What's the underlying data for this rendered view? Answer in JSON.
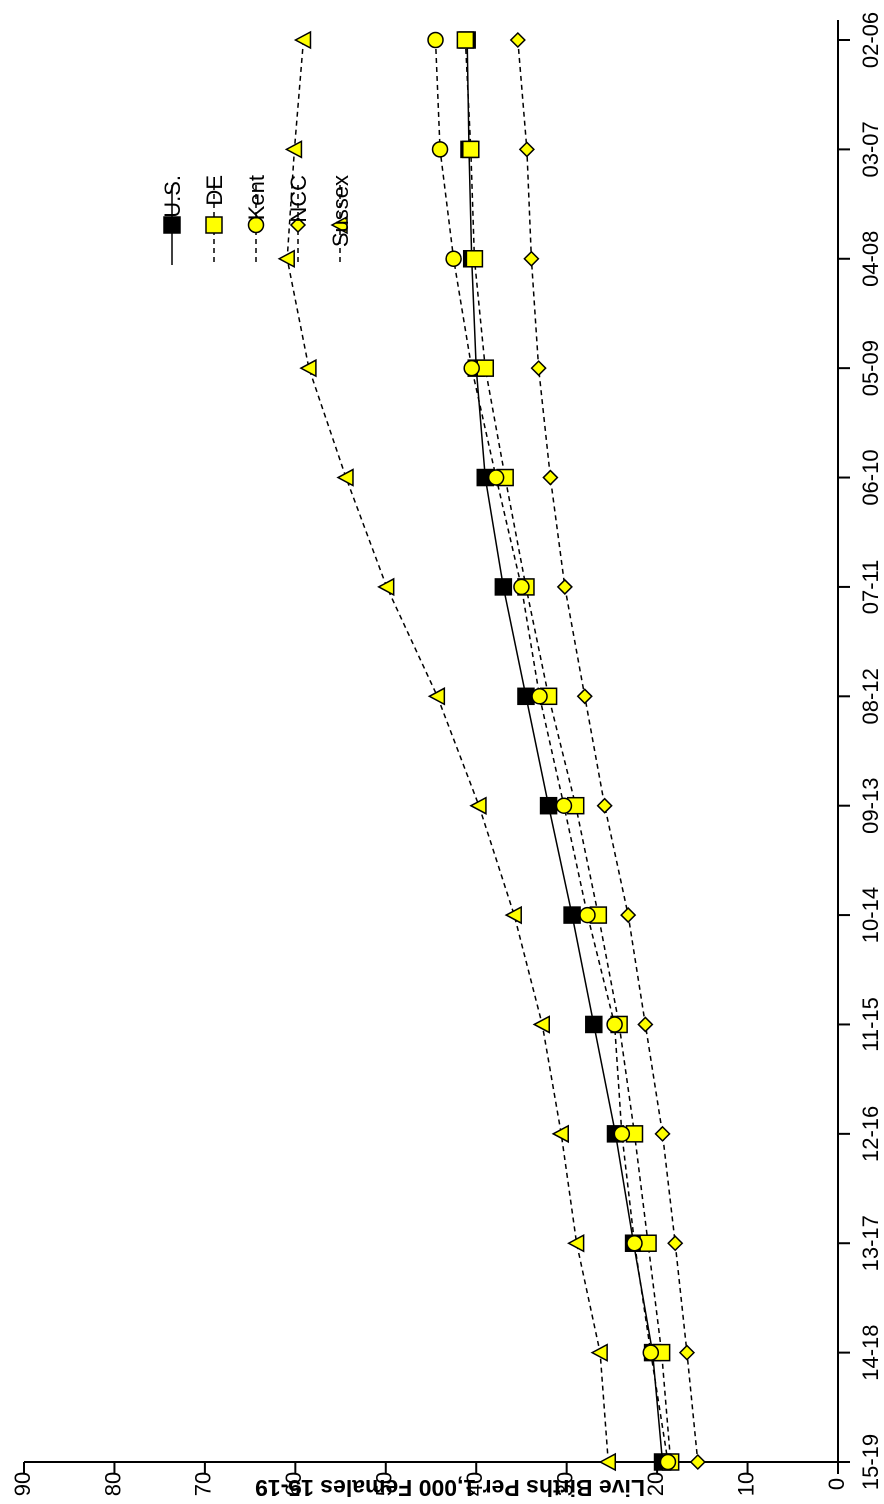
{
  "chart_data": {
    "type": "line",
    "orientation": "rotated-90",
    "title": "",
    "xlabel": "",
    "ylabel": "Live Births Per 1,000 Females 15-19",
    "categories": [
      "02-06",
      "03-07",
      "04-08",
      "05-09",
      "06-10",
      "07-11",
      "08-12",
      "09-13",
      "10-14",
      "11-15",
      "12-16",
      "13-17",
      "14-18",
      "15-19"
    ],
    "ylim": [
      0,
      90
    ],
    "yticks": [
      0,
      10,
      20,
      30,
      40,
      50,
      60,
      70,
      80,
      90
    ],
    "grid": false,
    "legend_position": "top-right",
    "series": [
      {
        "name": "U.S.",
        "marker": "square",
        "fill": "#000000",
        "line": "solid",
        "values": [
          41.0,
          40.8,
          40.5,
          40.0,
          39.0,
          37.0,
          34.5,
          32.0,
          29.4,
          27.0,
          24.6,
          22.6,
          20.5,
          19.4
        ]
      },
      {
        "name": "DE",
        "marker": "square",
        "fill": "#ffff00",
        "line": "dashed",
        "values": [
          41.2,
          40.6,
          40.2,
          39.0,
          36.8,
          34.5,
          32.0,
          29.0,
          26.5,
          24.2,
          22.5,
          21.0,
          19.5,
          18.5
        ]
      },
      {
        "name": "Kent",
        "marker": "circle",
        "fill": "#ffff00",
        "line": "dashed",
        "values": [
          44.5,
          44.0,
          42.5,
          40.5,
          37.8,
          35.0,
          33.0,
          30.3,
          27.7,
          24.7,
          23.9,
          22.5,
          20.7,
          18.8
        ]
      },
      {
        "name": "NCC",
        "marker": "diamond",
        "fill": "#ffff00",
        "line": "dashed",
        "values": [
          35.4,
          34.4,
          33.9,
          33.1,
          31.8,
          30.2,
          28.0,
          25.8,
          23.2,
          21.3,
          19.4,
          18.0,
          16.7,
          15.5
        ]
      },
      {
        "name": "Sussex",
        "marker": "triangle",
        "fill": "#ffff00",
        "line": "dashed",
        "values": [
          59.1,
          60.1,
          60.9,
          58.5,
          54.4,
          49.9,
          44.3,
          39.7,
          35.8,
          32.7,
          30.6,
          28.9,
          26.3,
          25.4
        ]
      }
    ]
  }
}
